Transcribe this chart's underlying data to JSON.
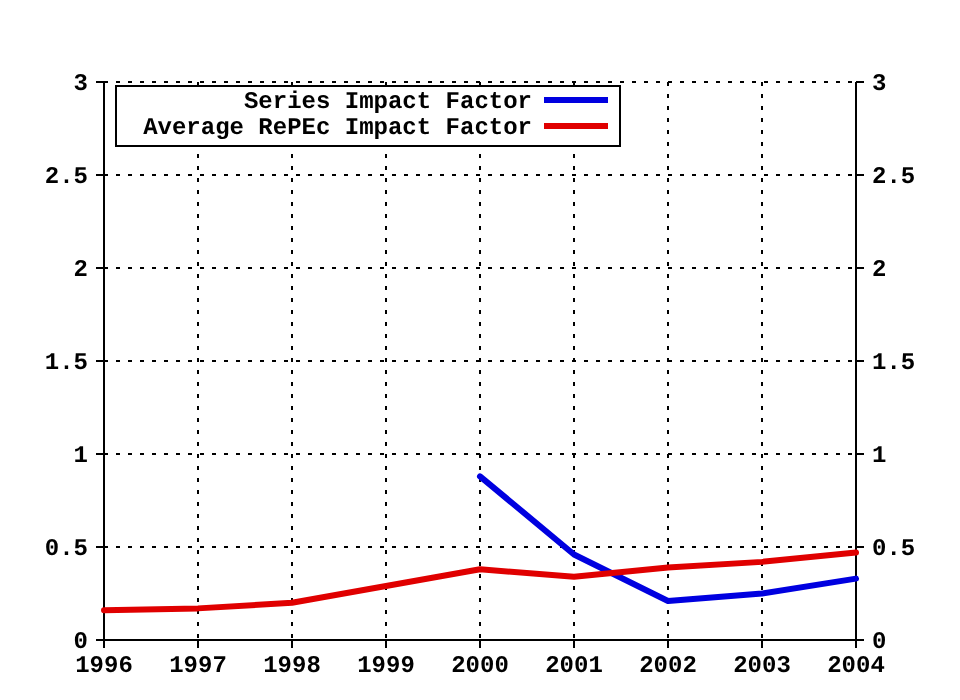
{
  "chart_data": {
    "type": "line",
    "x": [
      1996,
      1997,
      1998,
      1999,
      2000,
      2001,
      2002,
      2003,
      2004
    ],
    "xlim": [
      1996,
      2004
    ],
    "xticks": [
      1996,
      1997,
      1998,
      1999,
      2000,
      2001,
      2002,
      2003,
      2004
    ],
    "ylim": [
      0,
      3
    ],
    "yticks": [
      0,
      0.5,
      1,
      1.5,
      2,
      2.5,
      3
    ],
    "y2lim": [
      0,
      3
    ],
    "y2ticks": [
      0,
      0.5,
      1,
      1.5,
      2,
      2.5,
      3
    ],
    "grid": true,
    "legend": "top left",
    "marker": "none",
    "line_style": "solid",
    "series": [
      {
        "name": "Series Impact Factor",
        "color": "#0000e0",
        "values": [
          null,
          null,
          null,
          null,
          0.88,
          0.46,
          0.21,
          0.25,
          0.33
        ]
      },
      {
        "name": "Average RePEc Impact Factor",
        "color": "#e00000",
        "values": [
          0.16,
          0.17,
          0.2,
          0.29,
          0.38,
          0.34,
          0.39,
          0.42,
          0.47
        ]
      }
    ]
  }
}
